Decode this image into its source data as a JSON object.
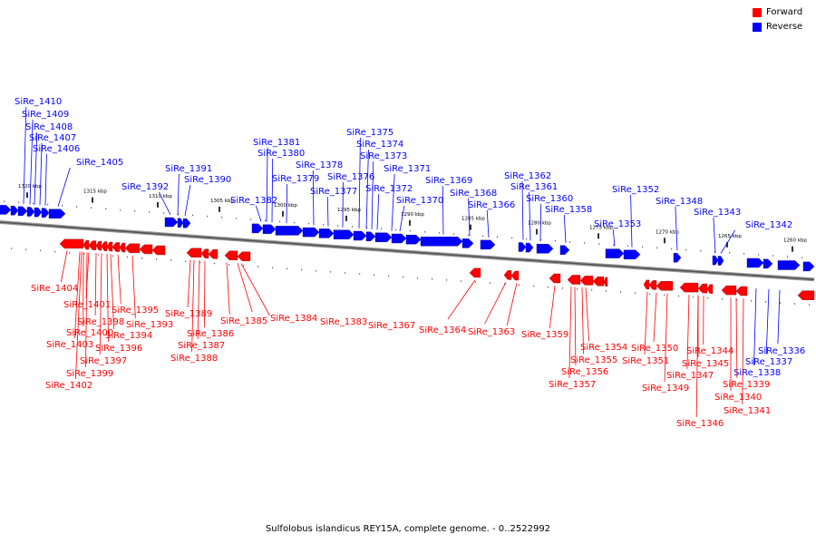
{
  "legend": {
    "forward": {
      "label": "Forward",
      "color": "#ff0000"
    },
    "reverse": {
      "label": "Reverse",
      "color": "#0000ff"
    }
  },
  "caption": "Sulfolobus islandicus REY15A, complete genome. - 0..2522992",
  "scale_ticks": [
    "1320 kbp",
    "1315 kbp",
    "1310 kbp",
    "1305 kbp",
    "1300 kbp",
    "1295 kbp",
    "1290 kbp",
    "1285 kbp",
    "1280 kbp",
    "1275 kbp",
    "1270 kbp",
    "1265 kbp",
    "1260 kbp"
  ],
  "genes": {
    "reverse": [
      "SiRe_1410",
      "SiRe_1409",
      "SiRe_1408",
      "SiRe_1407",
      "SiRe_1406",
      "SiRe_1405",
      "SiRe_1391",
      "SiRe_1392",
      "SiRe_1390",
      "SiRe_1381",
      "SiRe_1380",
      "SiRe_1379",
      "SiRe_1382",
      "SiRe_1378",
      "SiRe_1377",
      "SiRe_1376",
      "SiRe_1375",
      "SiRe_1374",
      "SiRe_1373",
      "SiRe_1372",
      "SiRe_1371",
      "SiRe_1370",
      "SiRe_1369",
      "SiRe_1368",
      "SiRe_1366",
      "SiRe_1362",
      "SiRe_1361",
      "SiRe_1360",
      "SiRe_1358",
      "SiRe_1352",
      "SiRe_1353",
      "SiRe_1348",
      "SiRe_1343",
      "SiRe_1342",
      "SiRe_1336",
      "SiRe_1337",
      "SiRe_1338"
    ],
    "forward": [
      "SiRe_1404",
      "SiRe_1401",
      "SiRe_1400",
      "SiRe_1398",
      "SiRe_1403",
      "SiRe_1397",
      "SiRe_1399",
      "SiRe_1402",
      "SiRe_1395",
      "SiRe_1394",
      "SiRe_1393",
      "SiRe_1396",
      "SiRe_1389",
      "SiRe_1386",
      "SiRe_1387",
      "SiRe_1388",
      "SiRe_1385",
      "SiRe_1384",
      "SiRe_1383",
      "SiRe_1367",
      "SiRe_1364",
      "SiRe_1363",
      "SiRe_1359",
      "SiRe_1354",
      "SiRe_1355",
      "SiRe_1356",
      "SiRe_1357",
      "SiRe_1350",
      "SiRe_1351",
      "SiRe_1349",
      "SiRe_1347",
      "SiRe_1344",
      "SiRe_1345",
      "SiRe_1346",
      "SiRe_1339",
      "SiRe_1340",
      "SiRe_1341"
    ]
  }
}
